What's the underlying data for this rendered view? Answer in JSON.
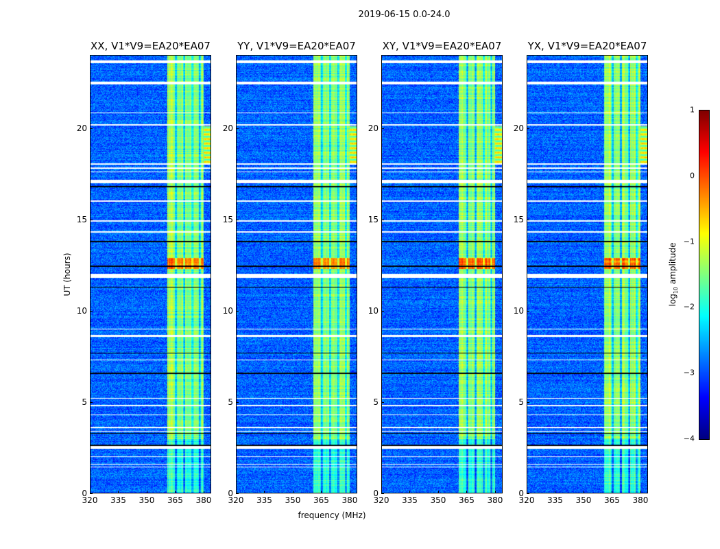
{
  "chart_data": {
    "type": "heatmap",
    "title": "2019-06-15 0.0-24.0",
    "xlabel": "frequency (MHz)",
    "ylabel": "UT (hours)",
    "xlim": [
      320,
      384
    ],
    "ylim": [
      0,
      24
    ],
    "xticks": [
      "320",
      "335",
      "350",
      "365",
      "380"
    ],
    "xtick_values": [
      320,
      335,
      350,
      365,
      380
    ],
    "yticks": [
      "0",
      "5",
      "10",
      "15",
      "20"
    ],
    "ytick_values": [
      0,
      5,
      10,
      15,
      20
    ],
    "panels": [
      {
        "title": "XX, V1*V9=EA20*EA07"
      },
      {
        "title": "YY, V1*V9=EA20*EA07"
      },
      {
        "title": "XY, V1*V9=EA20*EA07"
      },
      {
        "title": "YX, V1*V9=EA20*EA07"
      }
    ],
    "colorbar": {
      "label_prefix": "log",
      "label_sub": "10",
      "label_suffix": " amplitude",
      "range": [
        -4,
        1
      ],
      "ticks": [
        "1",
        "0",
        "−1",
        "−2",
        "−3",
        "−4"
      ],
      "tick_values": [
        1,
        0,
        -1,
        -2,
        -3,
        -4
      ],
      "colormap": "jet"
    },
    "background_level": -2.9,
    "rfi_band": {
      "start_mhz": 360.5,
      "end_mhz": 380,
      "level": -1.4
    },
    "band_dark_channels_mhz": [
      365.3,
      369.5,
      374,
      377.8
    ],
    "flagged_hours": [
      [
        23.55,
        23.7
      ],
      [
        22.4,
        22.55
      ],
      [
        20.82,
        20.88
      ],
      [
        20.15,
        20.22
      ],
      [
        18.0,
        18.1
      ],
      [
        17.8,
        17.85
      ],
      [
        17.6,
        17.65
      ],
      [
        17.0,
        17.2
      ],
      [
        16.0,
        16.05
      ],
      [
        14.9,
        14.95
      ],
      [
        14.3,
        14.35
      ],
      [
        11.8,
        12.05
      ],
      [
        9.0,
        9.05
      ],
      [
        8.6,
        8.7
      ],
      [
        7.3,
        7.35
      ],
      [
        5.2,
        5.25
      ],
      [
        4.8,
        4.85
      ],
      [
        4.3,
        4.35
      ],
      [
        3.6,
        3.65
      ],
      [
        3.4,
        3.45
      ],
      [
        2.45,
        2.6
      ],
      [
        2.0,
        2.05
      ],
      [
        1.45,
        1.5
      ],
      [
        1.6,
        1.65
      ]
    ],
    "dark_lines_hours": [
      2.65,
      3.3,
      6.6,
      7.7,
      11.3,
      12.45,
      13.8,
      16.8
    ],
    "hot_band_hours": [
      12.3,
      12.9
    ]
  }
}
